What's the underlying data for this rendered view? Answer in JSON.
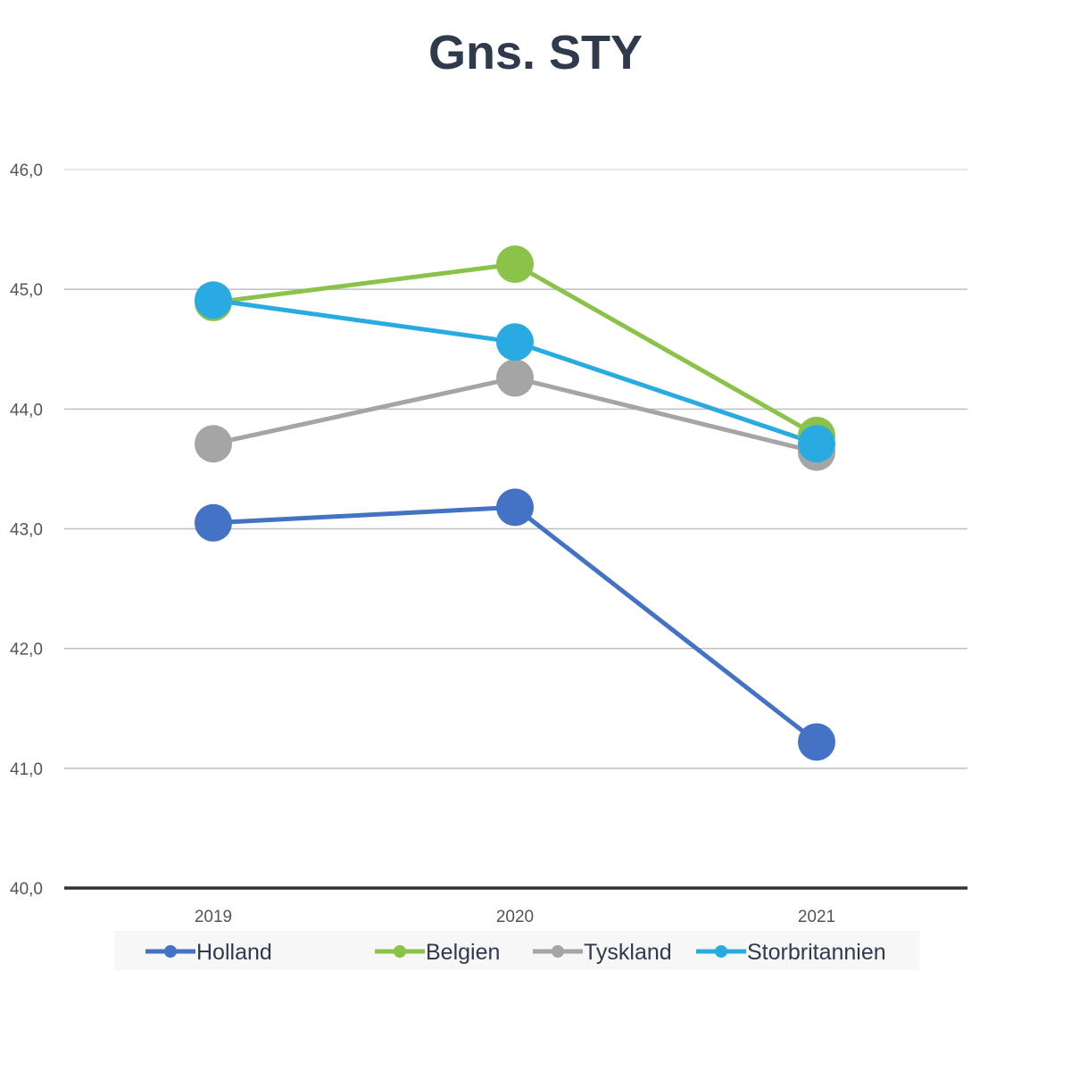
{
  "chart_data": {
    "type": "line",
    "title": "Gns. STY",
    "xlabel": "",
    "ylabel": "",
    "categories": [
      "2019",
      "2020",
      "2021"
    ],
    "ylim": [
      40,
      46
    ],
    "yticks": [
      "40,0",
      "41,0",
      "42,0",
      "43,0",
      "44,0",
      "45,0",
      "46,0"
    ],
    "grid": true,
    "legend_position": "bottom",
    "series": [
      {
        "name": "Holland",
        "color": "#4472c4",
        "values": [
          43.05,
          43.18,
          41.22
        ]
      },
      {
        "name": "Belgien",
        "color": "#8bc34a",
        "values": [
          44.89,
          45.21,
          43.78
        ]
      },
      {
        "name": "Tyskland",
        "color": "#a5a5a5",
        "values": [
          43.71,
          44.26,
          43.64
        ]
      },
      {
        "name": "Storbritannien",
        "color": "#29abe2",
        "values": [
          44.91,
          44.56,
          43.71
        ]
      }
    ]
  }
}
